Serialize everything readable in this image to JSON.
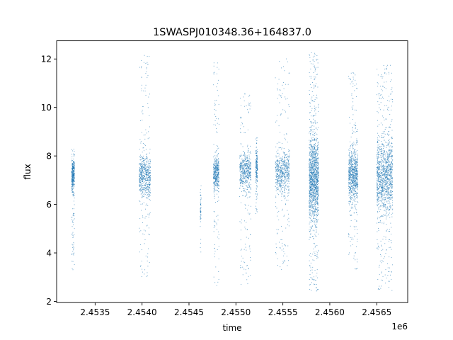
{
  "chart_data": {
    "type": "scatter",
    "title": "1SWASPJ010348.36+164837.0",
    "xlabel": "time",
    "ylabel": "flux",
    "x_offset_label": "1e6",
    "xlim": [
      2.45309,
      2.45683
    ],
    "ylim": [
      1.95,
      12.75
    ],
    "x_ticks": [
      2.4535,
      2.454,
      2.4545,
      2.455,
      2.4555,
      2.456,
      2.4565
    ],
    "x_tick_labels": [
      "2.4535",
      "2.4540",
      "2.4545",
      "2.4550",
      "2.4555",
      "2.4560",
      "2.4565"
    ],
    "y_ticks": [
      2,
      4,
      6,
      8,
      10,
      12
    ],
    "y_tick_labels": [
      "2",
      "4",
      "6",
      "8",
      "10",
      "12"
    ],
    "grid": false,
    "marker": "small dots",
    "series": [
      {
        "color": "#1f77b4",
        "clusters": [
          {
            "x_start": 2.45325,
            "x_end": 2.45328,
            "center": 7.2,
            "core_spread": 0.6,
            "min": 3.3,
            "max": 8.4,
            "density": 0.6
          },
          {
            "x_start": 2.45397,
            "x_end": 2.45409,
            "center": 7.2,
            "core_spread": 0.8,
            "min": 2.9,
            "max": 12.2,
            "density": 1.0
          },
          {
            "x_start": 2.45462,
            "x_end": 2.45463,
            "center": 5.8,
            "core_spread": 0.5,
            "min": 4.0,
            "max": 6.8,
            "density": 0.08
          },
          {
            "x_start": 2.45476,
            "x_end": 2.45482,
            "center": 7.3,
            "core_spread": 0.6,
            "min": 2.6,
            "max": 11.9,
            "density": 0.7
          },
          {
            "x_start": 2.45504,
            "x_end": 2.45516,
            "center": 7.4,
            "core_spread": 0.7,
            "min": 2.6,
            "max": 10.6,
            "density": 0.9
          },
          {
            "x_start": 2.45521,
            "x_end": 2.45523,
            "center": 7.5,
            "core_spread": 0.6,
            "min": 5.6,
            "max": 9.0,
            "density": 0.3
          },
          {
            "x_start": 2.45542,
            "x_end": 2.45557,
            "center": 7.3,
            "core_spread": 0.8,
            "min": 3.3,
            "max": 12.1,
            "density": 1.0
          },
          {
            "x_start": 2.45578,
            "x_end": 2.45588,
            "center": 7.1,
            "core_spread": 1.6,
            "min": 2.4,
            "max": 12.3,
            "density": 2.2
          },
          {
            "x_start": 2.4562,
            "x_end": 2.4563,
            "center": 7.2,
            "core_spread": 1.0,
            "min": 3.3,
            "max": 11.6,
            "density": 1.3
          },
          {
            "x_start": 2.4565,
            "x_end": 2.45667,
            "center": 7.2,
            "core_spread": 1.4,
            "min": 2.4,
            "max": 11.8,
            "density": 2.0
          }
        ]
      }
    ]
  }
}
